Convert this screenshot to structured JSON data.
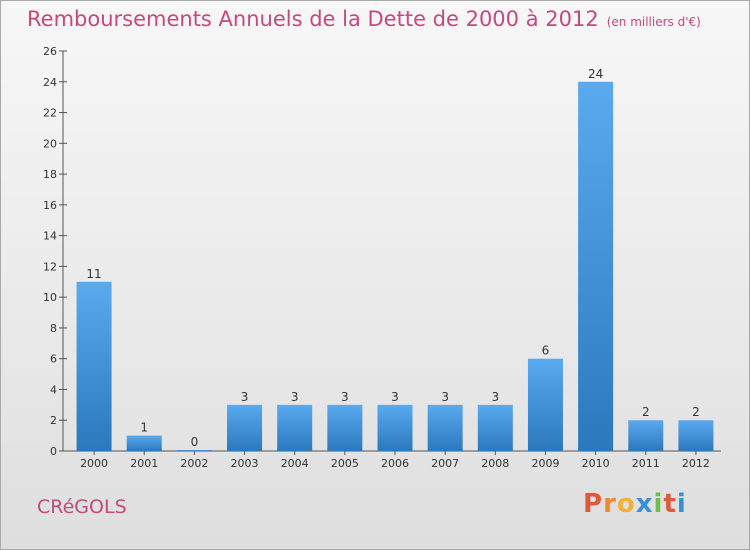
{
  "title": "Remboursements Annuels de la Dette de 2000 à 2012",
  "subtitle": "(en milliers d'€)",
  "commune": "CRéGOLS",
  "brand": [
    "P",
    "r",
    "o",
    "x",
    "i",
    "t",
    "i"
  ],
  "colors": {
    "title": "#c44a7e",
    "bar_top": "#5aaaf0",
    "bar_bottom": "#2b78bd",
    "brand": [
      "#e05a3a",
      "#f08a2a",
      "#f2b233",
      "#3a8fd8",
      "#6cc04a",
      "#e05a3a",
      "#3a8fd8"
    ]
  },
  "chart_data": {
    "type": "bar",
    "title": "Remboursements Annuels de la Dette de 2000 à 2012",
    "subtitle": "(en milliers d'€)",
    "categories": [
      "2000",
      "2001",
      "2002",
      "2003",
      "2004",
      "2005",
      "2006",
      "2007",
      "2008",
      "2009",
      "2010",
      "2011",
      "2012"
    ],
    "values": [
      11,
      1,
      0,
      3,
      3,
      3,
      3,
      3,
      3,
      6,
      24,
      2,
      2
    ],
    "ylim": [
      0,
      26
    ],
    "yticks": [
      0,
      2,
      4,
      6,
      8,
      10,
      12,
      14,
      16,
      18,
      20,
      22,
      24,
      26
    ],
    "grid": false,
    "xlabel": "",
    "ylabel": ""
  }
}
